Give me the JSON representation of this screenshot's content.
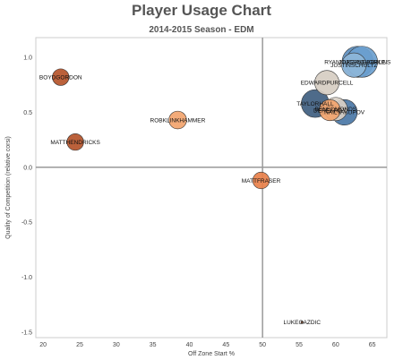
{
  "chart_data": {
    "type": "scatter",
    "title": "Player Usage Chart",
    "subtitle": "2014-2015 Season - EDM",
    "xlabel": "Off Zone Start %",
    "ylabel": "Quality of Competition (relative corsi)",
    "xlim": [
      19,
      67
    ],
    "ylim": [
      -1.55,
      1.18
    ],
    "xticks": [
      20,
      25,
      30,
      35,
      40,
      45,
      50,
      55,
      60,
      65
    ],
    "yticks": [
      1.0,
      0.5,
      0.0,
      -0.5,
      -1.0,
      -1.5
    ],
    "ytick_labels": [
      "1.0",
      "0.5",
      "0.0",
      "-0.5",
      "-1.0",
      "-1.5"
    ],
    "reference_lines": {
      "x": 50,
      "y": 0
    },
    "grid": false,
    "points": [
      {
        "label": "BOYDGORDON",
        "x": 22.4,
        "y": 0.82,
        "size": 1.5,
        "color": "#b5542a"
      },
      {
        "label": "MATTHENDRICKS",
        "x": 24.4,
        "y": 0.23,
        "size": 1.5,
        "color": "#b5542a"
      },
      {
        "label": "ROBKLINKHAMMER",
        "x": 38.4,
        "y": 0.43,
        "size": 1.6,
        "color": "#f2a46e"
      },
      {
        "label": "MATTFRASER",
        "x": 49.8,
        "y": -0.12,
        "size": 1.5,
        "color": "#e8804a"
      },
      {
        "label": "LUKEGAZDIC",
        "x": 55.4,
        "y": -1.41,
        "size": 0.2,
        "color": "#c0602e"
      },
      {
        "label": "DEREKROY",
        "x": 59.2,
        "y": 0.52,
        "size": 1.9,
        "color": "#f2a46e"
      },
      {
        "label": "TAYLORHALL",
        "x": 57.2,
        "y": 0.58,
        "size": 2.5,
        "color": "#3f5e80"
      },
      {
        "label": "BENEDMONDS",
        "x": 60.0,
        "y": 0.53,
        "size": 2.1,
        "color": "#d9d0c5"
      },
      {
        "label": "NAILYAKUPOV",
        "x": 61.2,
        "y": 0.5,
        "size": 2.3,
        "color": "#4a77a6"
      },
      {
        "label": "EDWARDPURCELL",
        "x": 58.8,
        "y": 0.77,
        "size": 2.2,
        "color": "#d6cdc2"
      },
      {
        "label": "RYANNUGENTHOPKINS",
        "x": 63.0,
        "y": 0.96,
        "size": 2.8,
        "color": "#5d8fc0"
      },
      {
        "label": "JORDANEBERLE",
        "x": 63.6,
        "y": 0.96,
        "size": 2.8,
        "color": "#6b9fcf"
      },
      {
        "label": "JUSTINSCHULTZ",
        "x": 62.5,
        "y": 0.93,
        "size": 2.2,
        "color": "#8eb6d9"
      }
    ]
  }
}
